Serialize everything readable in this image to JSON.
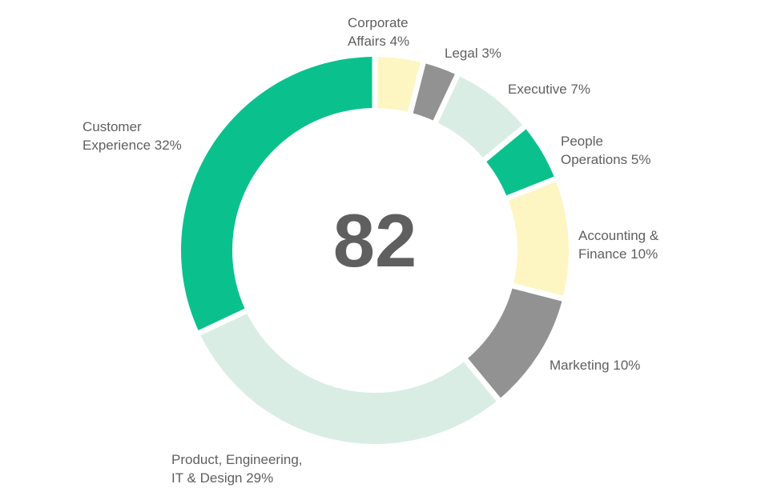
{
  "chart_data": {
    "type": "pie",
    "variant": "donut",
    "center_value": "82",
    "slices": [
      {
        "label": "Corporate Affairs",
        "text_lines": [
          "Corporate",
          "Affairs 4%"
        ],
        "value": 4,
        "color": "#fdf6c3"
      },
      {
        "label": "Legal",
        "text_lines": [
          "Legal 3%"
        ],
        "value": 3,
        "color": "#929292"
      },
      {
        "label": "Executive",
        "text_lines": [
          "Executive 7%"
        ],
        "value": 7,
        "color": "#d9ede5"
      },
      {
        "label": "People Operations",
        "text_lines": [
          "People",
          "Operations 5%"
        ],
        "value": 5,
        "color": "#0ac18e"
      },
      {
        "label": "Accounting & Finance",
        "text_lines": [
          "Accounting &",
          "Finance 10%"
        ],
        "value": 10,
        "color": "#fdf6c3"
      },
      {
        "label": "Marketing",
        "text_lines": [
          "Marketing 10%"
        ],
        "value": 10,
        "color": "#929292"
      },
      {
        "label": "Product, Engineering, IT & Design",
        "text_lines": [
          "Product, Engineering,",
          "IT & Design 29%"
        ],
        "value": 29,
        "color": "#d9ede5"
      },
      {
        "label": "Customer Experience",
        "text_lines": [
          "Customer",
          "Experience 32%"
        ],
        "value": 32,
        "color": "#0ac18e"
      }
    ]
  }
}
